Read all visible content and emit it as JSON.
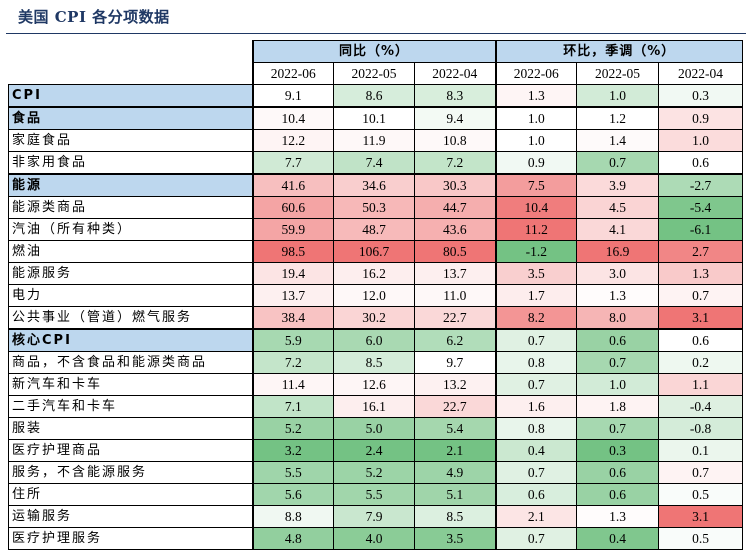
{
  "title": "美国 CPI 各分项数据",
  "headers": {
    "yoy_group": "同比（%）",
    "mom_group": "环比，季调（%）",
    "dates": [
      "2022-06",
      "2022-05",
      "2022-04",
      "2022-06",
      "2022-05",
      "2022-04"
    ]
  },
  "colors": {
    "header_blue": "#bdd7ee",
    "strong_red": "#ee6e6e",
    "light_red": "#fbd9d9",
    "strong_green": "#6dbf7d",
    "light_green": "#dff0e1"
  },
  "rows": [
    {
      "label": "CPI",
      "highlight": true,
      "yoy": [
        "9.1",
        "8.6",
        "8.3"
      ],
      "mom": [
        "1.3",
        "1.0",
        "0.3"
      ]
    },
    {
      "label": "食品",
      "highlight": true,
      "yoy": [
        "10.4",
        "10.1",
        "9.4"
      ],
      "mom": [
        "1.0",
        "1.2",
        "0.9"
      ]
    },
    {
      "label": "家庭食品",
      "highlight": false,
      "yoy": [
        "12.2",
        "11.9",
        "10.8"
      ],
      "mom": [
        "1.0",
        "1.4",
        "1.0"
      ]
    },
    {
      "label": "非家用食品",
      "highlight": false,
      "yoy": [
        "7.7",
        "7.4",
        "7.2"
      ],
      "mom": [
        "0.9",
        "0.7",
        "0.6"
      ]
    },
    {
      "label": "能源",
      "highlight": true,
      "yoy": [
        "41.6",
        "34.6",
        "30.3"
      ],
      "mom": [
        "7.5",
        "3.9",
        "-2.7"
      ]
    },
    {
      "label": "能源类商品",
      "highlight": false,
      "yoy": [
        "60.6",
        "50.3",
        "44.7"
      ],
      "mom": [
        "10.4",
        "4.5",
        "-5.4"
      ]
    },
    {
      "label": "汽油（所有种类）",
      "highlight": false,
      "yoy": [
        "59.9",
        "48.7",
        "43.6"
      ],
      "mom": [
        "11.2",
        "4.1",
        "-6.1"
      ]
    },
    {
      "label": "燃油",
      "highlight": false,
      "yoy": [
        "98.5",
        "106.7",
        "80.5"
      ],
      "mom": [
        "-1.2",
        "16.9",
        "2.7"
      ]
    },
    {
      "label": "能源服务",
      "highlight": false,
      "yoy": [
        "19.4",
        "16.2",
        "13.7"
      ],
      "mom": [
        "3.5",
        "3.0",
        "1.3"
      ]
    },
    {
      "label": "电力",
      "highlight": false,
      "yoy": [
        "13.7",
        "12.0",
        "11.0"
      ],
      "mom": [
        "1.7",
        "1.3",
        "0.7"
      ]
    },
    {
      "label": "公共事业（管道）燃气服务",
      "highlight": false,
      "yoy": [
        "38.4",
        "30.2",
        "22.7"
      ],
      "mom": [
        "8.2",
        "8.0",
        "3.1"
      ]
    },
    {
      "label": "核心CPI",
      "highlight": true,
      "yoy": [
        "5.9",
        "6.0",
        "6.2"
      ],
      "mom": [
        "0.7",
        "0.6",
        "0.6"
      ]
    },
    {
      "label": "商品，不含食品和能源类商品",
      "highlight": false,
      "yoy": [
        "7.2",
        "8.5",
        "9.7"
      ],
      "mom": [
        "0.8",
        "0.7",
        "0.2"
      ]
    },
    {
      "label": "新汽车和卡车",
      "highlight": false,
      "yoy": [
        "11.4",
        "12.6",
        "13.2"
      ],
      "mom": [
        "0.7",
        "1.0",
        "1.1"
      ]
    },
    {
      "label": "二手汽车和卡车",
      "highlight": false,
      "yoy": [
        "7.1",
        "16.1",
        "22.7"
      ],
      "mom": [
        "1.6",
        "1.8",
        "-0.4"
      ]
    },
    {
      "label": "服装",
      "highlight": false,
      "yoy": [
        "5.2",
        "5.0",
        "5.4"
      ],
      "mom": [
        "0.8",
        "0.7",
        "-0.8"
      ]
    },
    {
      "label": "医疗护理商品",
      "highlight": false,
      "yoy": [
        "3.2",
        "2.4",
        "2.1"
      ],
      "mom": [
        "0.4",
        "0.3",
        "0.1"
      ]
    },
    {
      "label": "服务，不含能源服务",
      "highlight": false,
      "yoy": [
        "5.5",
        "5.2",
        "4.9"
      ],
      "mom": [
        "0.7",
        "0.6",
        "0.7"
      ]
    },
    {
      "label": "住所",
      "highlight": false,
      "yoy": [
        "5.6",
        "5.5",
        "5.1"
      ],
      "mom": [
        "0.6",
        "0.6",
        "0.5"
      ]
    },
    {
      "label": "运输服务",
      "highlight": false,
      "yoy": [
        "8.8",
        "7.9",
        "8.5"
      ],
      "mom": [
        "2.1",
        "1.3",
        "3.1"
      ]
    },
    {
      "label": "医疗护理服务",
      "highlight": false,
      "yoy": [
        "4.8",
        "4.0",
        "3.5"
      ],
      "mom": [
        "0.7",
        "0.4",
        "0.5"
      ]
    }
  ]
}
